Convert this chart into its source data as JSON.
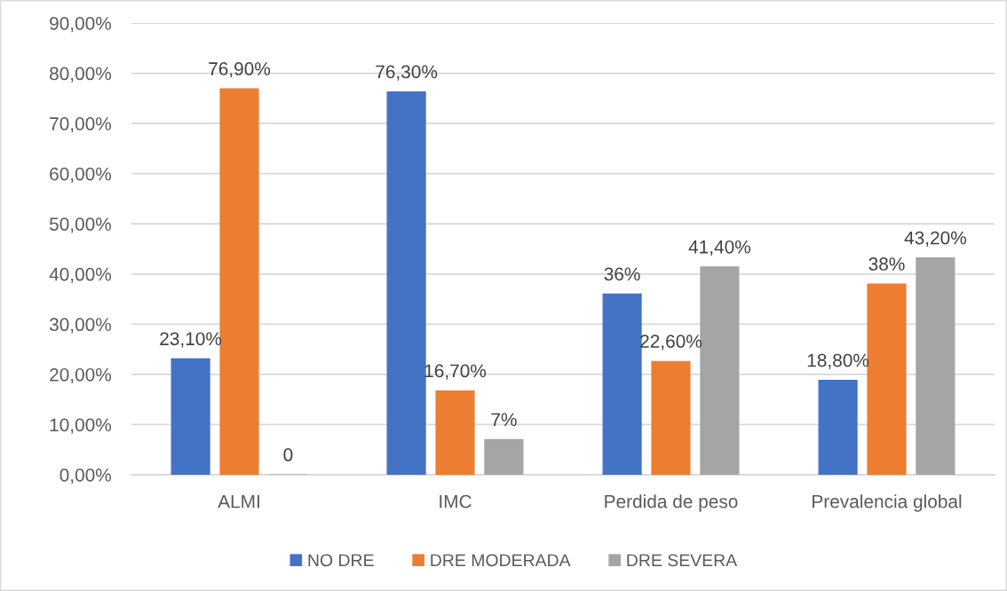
{
  "chart_data": {
    "type": "bar",
    "categories": [
      "ALMI",
      "IMC",
      "Perdida de peso",
      "Prevalencia global"
    ],
    "series": [
      {
        "name": "NO DRE",
        "color": "#4472c4",
        "values": [
          23.1,
          76.3,
          36,
          18.8
        ],
        "value_labels": [
          "23,10%",
          "76,30%",
          "36%",
          "18,80%"
        ]
      },
      {
        "name": "DRE MODERADA",
        "color": "#ed7d31",
        "values": [
          76.9,
          16.7,
          22.6,
          38
        ],
        "value_labels": [
          "76,90%",
          "16,70%",
          "22,60%",
          "38%"
        ]
      },
      {
        "name": "DRE SEVERA",
        "color": "#a5a5a5",
        "values": [
          0,
          7,
          41.4,
          43.2
        ],
        "value_labels": [
          "0",
          "7%",
          "41,40%",
          "43,20%"
        ]
      }
    ],
    "ylim": [
      0,
      90
    ],
    "yticks": [
      {
        "value": 0,
        "label": "0,00%"
      },
      {
        "value": 10,
        "label": "10,00%"
      },
      {
        "value": 20,
        "label": "20,00%"
      },
      {
        "value": 30,
        "label": "30,00%"
      },
      {
        "value": 40,
        "label": "40,00%"
      },
      {
        "value": 50,
        "label": "50,00%"
      },
      {
        "value": 60,
        "label": "60,00%"
      },
      {
        "value": 70,
        "label": "70,00%"
      },
      {
        "value": 80,
        "label": "80,00%"
      },
      {
        "value": 90,
        "label": "90,00%"
      }
    ],
    "grid": "y",
    "legend": "bottom"
  }
}
